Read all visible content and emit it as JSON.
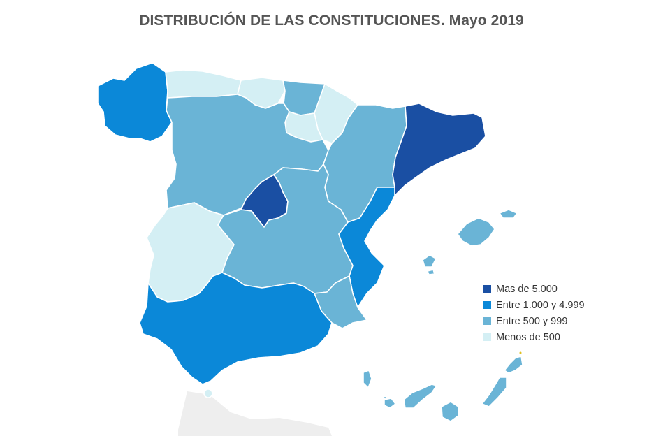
{
  "title": "DISTRIBUCIÓN DE LAS CONSTITUCIONES. Mayo 2019",
  "legend": [
    {
      "label": "Mas de 5.000",
      "color": "#1a4fa3"
    },
    {
      "label": "Entre 1.000 y 4.999",
      "color": "#0b88d8"
    },
    {
      "label": "Entre 500 y  999",
      "color": "#6ab4d6"
    },
    {
      "label": "Menos de 500",
      "color": "#d4eff4"
    }
  ],
  "regions": [
    {
      "name": "Galicia",
      "category": 1
    },
    {
      "name": "Asturias",
      "category": 3
    },
    {
      "name": "Cantabria",
      "category": 3
    },
    {
      "name": "País Vasco",
      "category": 2
    },
    {
      "name": "Navarra",
      "category": 3
    },
    {
      "name": "La Rioja",
      "category": 3
    },
    {
      "name": "Castilla y León",
      "category": 2
    },
    {
      "name": "Aragón",
      "category": 2
    },
    {
      "name": "Cataluña",
      "category": 0
    },
    {
      "name": "Madrid",
      "category": 0
    },
    {
      "name": "Extremadura",
      "category": 3
    },
    {
      "name": "Castilla-La Mancha",
      "category": 2
    },
    {
      "name": "Comunidad Valenciana",
      "category": 1
    },
    {
      "name": "Murcia",
      "category": 2
    },
    {
      "name": "Andalucía",
      "category": 1
    },
    {
      "name": "Islas Baleares",
      "category": 2
    },
    {
      "name": "Islas Canarias",
      "category": 2
    }
  ]
}
